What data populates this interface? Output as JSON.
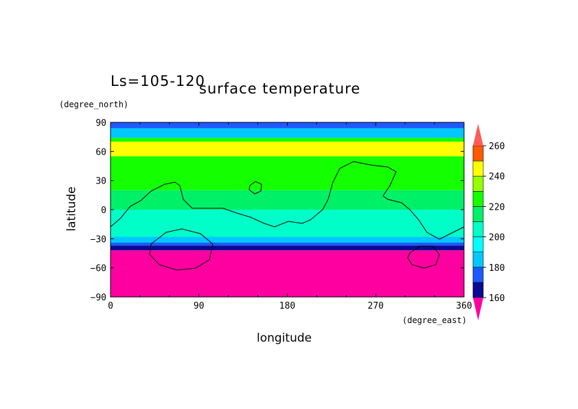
{
  "chart_data": {
    "type": "heatmap",
    "title": "surface temperature",
    "subtitle": "Ls=105-120",
    "xlabel": "longitude",
    "ylabel": "latitude",
    "x_units": "(degree_east)",
    "y_units": "(degree_north)",
    "xlim": [
      0,
      360
    ],
    "ylim": [
      -90,
      90
    ],
    "x_ticks": [
      "0",
      "90",
      "180",
      "270",
      "360"
    ],
    "y_ticks": [
      "90",
      "60",
      "30",
      "0",
      "−30",
      "−60",
      "−90"
    ],
    "colorbar": {
      "levels": [
        160,
        170,
        180,
        190,
        200,
        210,
        220,
        230,
        240,
        250,
        260
      ],
      "tick_labels": [
        "160",
        "180",
        "200",
        "220",
        "240",
        "260"
      ],
      "colors": [
        "#0a0a96",
        "#1e5aff",
        "#00c8ff",
        "#00ffff",
        "#00ffc8",
        "#00f068",
        "#14ff00",
        "#96ff00",
        "#ffff00",
        "#ff5a00",
        "#ff0000"
      ],
      "under_color": "#ff00a0",
      "over_color": "#ff5a5a"
    },
    "latitude_bands": [
      {
        "lat_range": [
          84,
          90
        ],
        "value": 170
      },
      {
        "lat_range": [
          74,
          84
        ],
        "value": 185
      },
      {
        "lat_range": [
          70,
          74
        ],
        "value": 225
      },
      {
        "lat_range": [
          55,
          70
        ],
        "value": 240
      },
      {
        "lat_range": [
          20,
          55
        ],
        "value": 220
      },
      {
        "lat_range": [
          0,
          20
        ],
        "value": 210
      },
      {
        "lat_range": [
          -28,
          0
        ],
        "value": 200
      },
      {
        "lat_range": [
          -34,
          -28
        ],
        "value": 185
      },
      {
        "lat_range": [
          -37,
          -34
        ],
        "value": 175
      },
      {
        "lat_range": [
          -42,
          -37
        ],
        "value": 165
      },
      {
        "lat_range": [
          -90,
          -42
        ],
        "value": 150
      }
    ]
  }
}
